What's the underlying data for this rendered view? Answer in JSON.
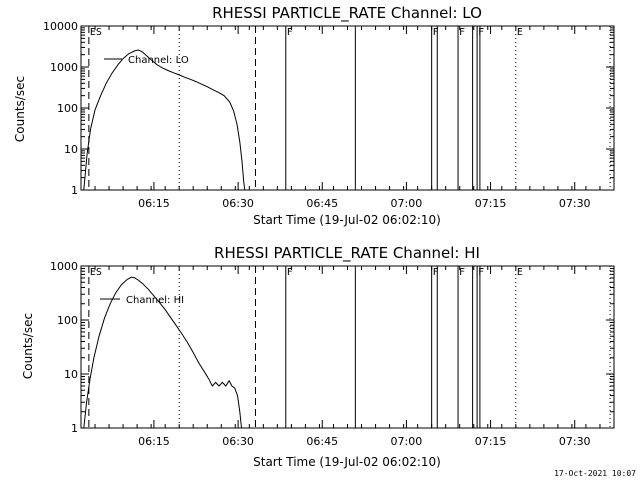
{
  "timestamp": "17-Oct-2021 10:07",
  "chart_data": [
    {
      "type": "line",
      "title": "RHESSI PARTICLE_RATE Channel: LO",
      "xlabel": "Start Time (19-Jul-02 06:02:10)",
      "ylabel": "Counts/sec",
      "xlim_minutes_after_0602": [
        0,
        95
      ],
      "ylim": [
        1,
        10000
      ],
      "yscale": "log",
      "x_ticks": [
        {
          "minute": 13,
          "label": "06:15"
        },
        {
          "minute": 28,
          "label": "06:30"
        },
        {
          "minute": 43,
          "label": "06:45"
        },
        {
          "minute": 58,
          "label": "07:00"
        },
        {
          "minute": 73,
          "label": "07:15"
        },
        {
          "minute": 88,
          "label": "07:30"
        }
      ],
      "y_ticks": [
        {
          "value": 1,
          "label": "1"
        },
        {
          "value": 10,
          "label": "10"
        },
        {
          "value": 100,
          "label": "100"
        },
        {
          "value": 1000,
          "label": "1000"
        },
        {
          "value": 10000,
          "label": "10000"
        }
      ],
      "legend": "Channel: LO",
      "series": [
        {
          "name": "Channel: LO",
          "points": [
            [
              0.5,
              1
            ],
            [
              1.1,
              8
            ],
            [
              1.7,
              30
            ],
            [
              2.5,
              90
            ],
            [
              3.5,
              200
            ],
            [
              4.5,
              400
            ],
            [
              5.5,
              700
            ],
            [
              6.5,
              1100
            ],
            [
              7.5,
              1600
            ],
            [
              8.5,
              2100
            ],
            [
              9.5,
              2450
            ],
            [
              10.2,
              2600
            ],
            [
              10.8,
              2400
            ],
            [
              11.5,
              2000
            ],
            [
              12.5,
              1500
            ],
            [
              13.5,
              1150
            ],
            [
              14.5,
              950
            ],
            [
              15.5,
              820
            ],
            [
              16.5,
              720
            ],
            [
              17.5,
              640
            ],
            [
              18.5,
              560
            ],
            [
              19.5,
              500
            ],
            [
              20.5,
              440
            ],
            [
              21.5,
              380
            ],
            [
              22.5,
              330
            ],
            [
              23.5,
              280
            ],
            [
              24.5,
              240
            ],
            [
              25.5,
              200
            ],
            [
              26.5,
              140
            ],
            [
              27.2,
              85
            ],
            [
              27.8,
              40
            ],
            [
              28.3,
              15
            ],
            [
              28.7,
              5
            ],
            [
              29.0,
              1.6
            ],
            [
              29.2,
              1
            ]
          ]
        }
      ],
      "markers": [
        {
          "minute": 1.4,
          "style": "dashed",
          "label": "ES"
        },
        {
          "minute": 31.1,
          "style": "dashed",
          "label": ""
        },
        {
          "minute": 17.5,
          "style": "dotted",
          "label": ""
        },
        {
          "minute": 77.5,
          "style": "dotted",
          "label": "E"
        },
        {
          "minute": 94.3,
          "style": "dotted",
          "label": ""
        },
        {
          "minute": 36.5,
          "style": "solid",
          "label": "F"
        },
        {
          "minute": 48.9,
          "style": "solid",
          "label": ""
        },
        {
          "minute": 62.5,
          "style": "solid",
          "label": "F"
        },
        {
          "minute": 63.5,
          "style": "solid",
          "label": ""
        },
        {
          "minute": 67.2,
          "style": "solid",
          "label": "F"
        },
        {
          "minute": 69.8,
          "style": "solid",
          "label": ""
        },
        {
          "minute": 70.6,
          "style": "solid",
          "label": "F"
        },
        {
          "minute": 71.1,
          "style": "solid",
          "label": ""
        }
      ]
    },
    {
      "type": "line",
      "title": "RHESSI PARTICLE_RATE Channel: HI",
      "xlabel": "Start Time (19-Jul-02 06:02:10)",
      "ylabel": "Counts/sec",
      "xlim_minutes_after_0602": [
        0,
        95
      ],
      "ylim": [
        1,
        1000
      ],
      "yscale": "log",
      "x_ticks": [
        {
          "minute": 13,
          "label": "06:15"
        },
        {
          "minute": 28,
          "label": "06:30"
        },
        {
          "minute": 43,
          "label": "06:45"
        },
        {
          "minute": 58,
          "label": "07:00"
        },
        {
          "minute": 73,
          "label": "07:15"
        },
        {
          "minute": 88,
          "label": "07:30"
        }
      ],
      "y_ticks": [
        {
          "value": 1,
          "label": "1"
        },
        {
          "value": 10,
          "label": "10"
        },
        {
          "value": 100,
          "label": "100"
        },
        {
          "value": 1000,
          "label": "1000"
        }
      ],
      "legend": "Channel: HI",
      "series": [
        {
          "name": "Channel: HI",
          "points": [
            [
              0.5,
              1
            ],
            [
              1.0,
              3
            ],
            [
              1.6,
              8
            ],
            [
              2.3,
              20
            ],
            [
              3.2,
              50
            ],
            [
              4.2,
              110
            ],
            [
              5.2,
              200
            ],
            [
              6.2,
              320
            ],
            [
              7.2,
              450
            ],
            [
              8.2,
              560
            ],
            [
              9.0,
              620
            ],
            [
              9.6,
              600
            ],
            [
              10.3,
              540
            ],
            [
              11.0,
              470
            ],
            [
              12.0,
              370
            ],
            [
              13.0,
              280
            ],
            [
              14.0,
              210
            ],
            [
              15.0,
              155
            ],
            [
              16.0,
              110
            ],
            [
              17.0,
              78
            ],
            [
              18.0,
              55
            ],
            [
              19.0,
              38
            ],
            [
              20.0,
              25
            ],
            [
              21.0,
              16
            ],
            [
              22.0,
              11
            ],
            [
              22.8,
              8
            ],
            [
              23.4,
              6
            ],
            [
              24.0,
              7
            ],
            [
              24.6,
              6
            ],
            [
              25.2,
              7
            ],
            [
              25.8,
              6
            ],
            [
              26.4,
              7.5
            ],
            [
              26.9,
              6
            ],
            [
              27.4,
              5.5
            ],
            [
              27.9,
              4
            ],
            [
              28.3,
              2
            ],
            [
              28.6,
              1
            ]
          ]
        }
      ],
      "markers": [
        {
          "minute": 1.4,
          "style": "dashed",
          "label": "ES"
        },
        {
          "minute": 31.1,
          "style": "dashed",
          "label": ""
        },
        {
          "minute": 17.5,
          "style": "dotted",
          "label": ""
        },
        {
          "minute": 77.5,
          "style": "dotted",
          "label": "E"
        },
        {
          "minute": 94.3,
          "style": "dotted",
          "label": ""
        },
        {
          "minute": 36.5,
          "style": "solid",
          "label": "F"
        },
        {
          "minute": 48.9,
          "style": "solid",
          "label": ""
        },
        {
          "minute": 62.5,
          "style": "solid",
          "label": "F"
        },
        {
          "minute": 63.5,
          "style": "solid",
          "label": ""
        },
        {
          "minute": 67.2,
          "style": "solid",
          "label": "F"
        },
        {
          "minute": 69.8,
          "style": "solid",
          "label": ""
        },
        {
          "minute": 70.6,
          "style": "solid",
          "label": "F"
        },
        {
          "minute": 71.1,
          "style": "solid",
          "label": ""
        }
      ]
    }
  ]
}
